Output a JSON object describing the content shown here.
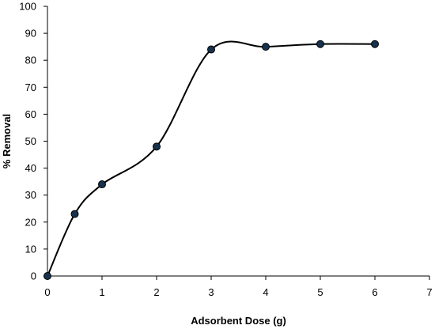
{
  "chart_data": {
    "type": "scatter",
    "xlabel": "Adsorbent Dose (g)",
    "ylabel": "% Removal",
    "xlim": [
      0,
      7
    ],
    "ylim": [
      0,
      100
    ],
    "xticks": [
      0,
      1,
      2,
      3,
      4,
      5,
      6,
      7
    ],
    "yticks": [
      0,
      10,
      20,
      30,
      40,
      50,
      60,
      70,
      80,
      90,
      100
    ],
    "grid": false,
    "legend": "none",
    "smooth_line": true,
    "series": [
      {
        "x": [
          0,
          0.5,
          1,
          2,
          3,
          4,
          5,
          6
        ],
        "y": [
          0,
          23,
          34,
          48,
          84,
          85,
          86,
          86
        ]
      }
    ],
    "colors": {
      "line": "#000000",
      "marker_fill": "#17324d",
      "marker_stroke": "#000000"
    }
  }
}
